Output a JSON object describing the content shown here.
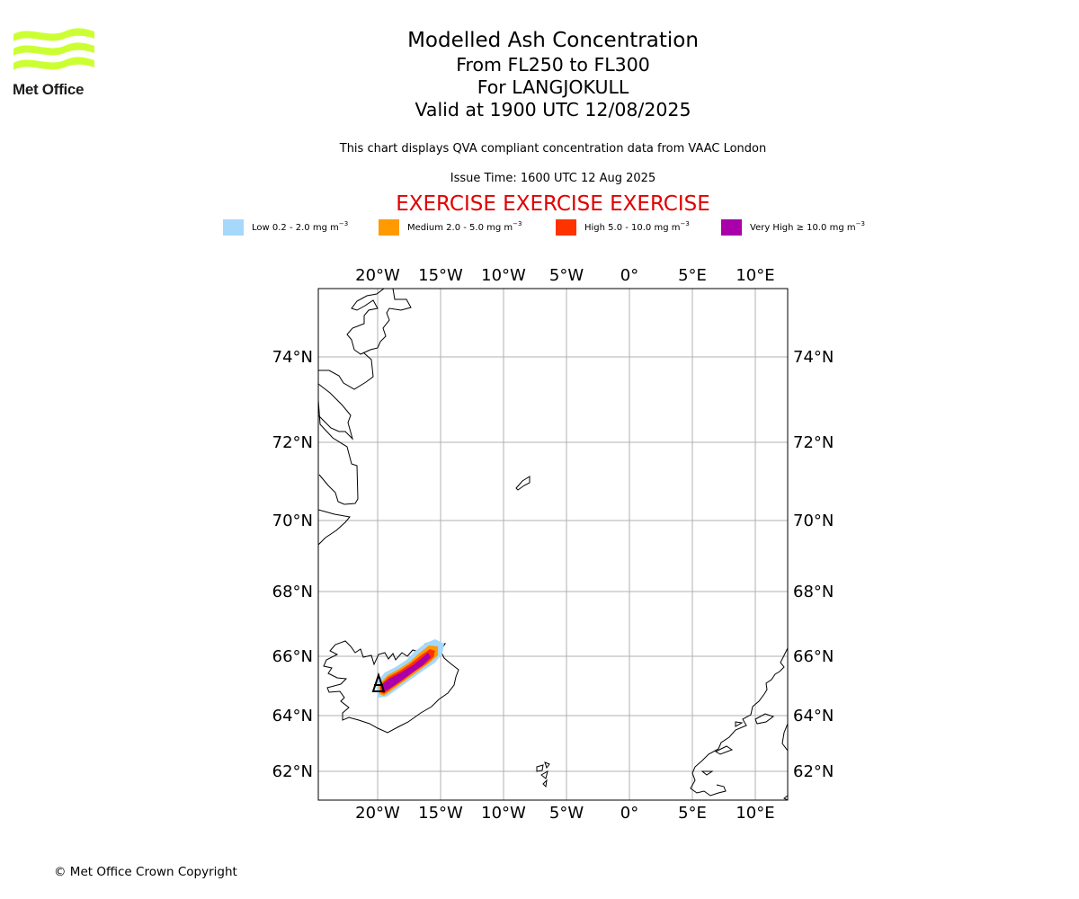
{
  "logo": {
    "text": "Met Office",
    "color": "#ccff33"
  },
  "title": {
    "line1": "Modelled Ash Concentration",
    "line2": "From FL250 to FL300",
    "line3": "For LANGJOKULL",
    "line4": "Valid at 1900 UTC 12/08/2025"
  },
  "subtitle": "This chart displays QVA compliant concentration data from VAAC London",
  "issue_time": "Issue Time: 1600 UTC 12 Aug 2025",
  "exercise_banner": "EXERCISE EXERCISE EXERCISE",
  "legend": [
    {
      "label": "Low 0.2 - 2.0 mg m",
      "unit_exp": "−3",
      "color": "#a6d8fb"
    },
    {
      "label": "Medium 2.0 - 5.0 mg m",
      "unit_exp": "−3",
      "color": "#ff9a00"
    },
    {
      "label": "High 5.0 - 10.0 mg m",
      "unit_exp": "−3",
      "color": "#ff3300"
    },
    {
      "label": "Very High  ≥  10.0 mg m",
      "unit_exp": "−3",
      "color": "#aa00aa"
    }
  ],
  "map": {
    "lon_labels": [
      "20°W",
      "15°W",
      "10°W",
      "5°W",
      "0°",
      "5°E",
      "10°E"
    ],
    "lat_labels": [
      "74°N",
      "72°N",
      "70°N",
      "68°N",
      "66°N",
      "64°N",
      "62°N"
    ]
  },
  "copyright": "© Met Office Crown Copyright"
}
